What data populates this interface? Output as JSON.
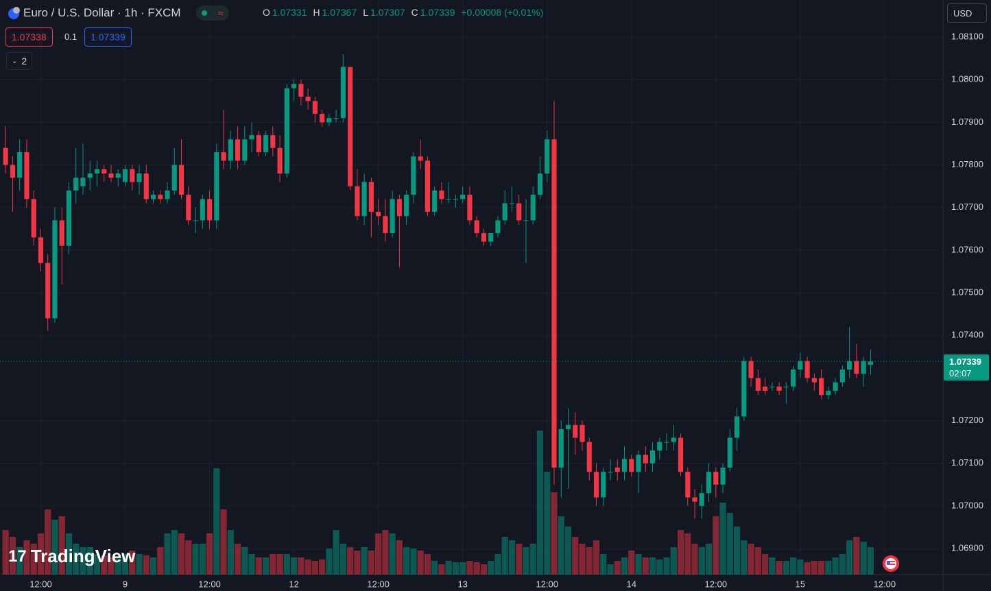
{
  "header": {
    "symbol": "Euro / U.S. Dollar · 1h · FXCM",
    "o_label": "O",
    "o": "1.07331",
    "h_label": "H",
    "h": "1.07367",
    "l_label": "L",
    "l": "1.07307",
    "c_label": "C",
    "c": "1.07339",
    "change": "+0.00008 (+0.01%)",
    "bid": "1.07338",
    "spread": "0.1",
    "ask": "1.07339",
    "indicators": "2",
    "currency": "USD",
    "logo": "TradingView"
  },
  "chart_data": {
    "type": "candlestick",
    "up_color": "#089981",
    "down_color": "#f23645",
    "grid": true,
    "x": [
      0,
      1,
      2,
      3,
      4,
      5,
      6,
      7,
      8,
      9,
      10,
      11,
      12,
      13,
      14,
      15,
      16,
      17,
      18,
      19,
      20,
      21,
      22,
      23,
      24,
      25,
      26,
      27,
      28,
      29,
      30,
      31,
      32,
      33,
      34,
      35,
      36,
      37,
      38,
      39,
      40,
      41,
      42,
      43,
      44,
      45,
      46,
      47,
      48,
      49,
      50,
      51,
      52,
      53,
      54,
      55,
      56,
      57,
      58,
      59,
      60,
      61,
      62,
      63,
      64,
      65,
      66,
      67,
      68,
      69,
      70,
      71,
      72,
      73,
      74,
      75,
      76,
      77,
      78,
      79,
      80,
      81,
      82,
      83,
      84,
      85,
      86,
      87,
      88,
      89,
      90,
      91,
      92,
      93,
      94,
      95,
      96,
      97,
      98,
      99,
      100,
      101,
      102,
      103,
      104,
      105,
      106,
      107,
      108,
      109,
      110,
      111,
      112,
      113,
      114,
      115,
      116,
      117,
      118,
      119,
      120,
      121,
      122,
      123
    ],
    "open": [
      1.0784,
      1.078,
      1.0777,
      1.0783,
      1.0772,
      1.0763,
      1.0757,
      1.0744,
      1.0767,
      1.0761,
      1.0774,
      1.0775,
      1.0777,
      1.0778,
      1.0779,
      1.0778,
      1.0777,
      1.0776,
      1.0779,
      1.0776,
      1.0778,
      1.0772,
      1.0773,
      1.0772,
      1.0774,
      1.078,
      1.0773,
      1.0767,
      1.0767,
      1.0772,
      1.0767,
      1.0783,
      1.0781,
      1.0786,
      1.0781,
      1.0786,
      1.0787,
      1.0783,
      1.0787,
      1.0784,
      1.0778,
      1.0798,
      1.0799,
      1.0796,
      1.0795,
      1.0792,
      1.079,
      1.0791,
      1.0791,
      1.0803,
      1.0775,
      1.0768,
      1.0776,
      1.0769,
      1.0768,
      1.0764,
      1.0772,
      1.0768,
      1.0773,
      1.0782,
      1.0781,
      1.0769,
      1.0774,
      1.0772,
      1.0772,
      1.0772,
      1.0773,
      1.0767,
      1.0764,
      1.0762,
      1.0764,
      1.0767,
      1.0771,
      1.0771,
      1.0767,
      1.0767,
      1.0773,
      1.0778,
      1.0786,
      1.0709,
      1.0718,
      1.0719,
      1.0719,
      1.0715,
      1.0708,
      1.0702,
      1.0708,
      1.0709,
      1.0708,
      1.0711,
      1.0708,
      1.0712,
      1.071,
      1.0713,
      1.0715,
      1.0715,
      1.0716,
      1.0708,
      1.0702,
      1.07,
      1.0703,
      1.0708,
      1.0705,
      1.0709,
      1.0716,
      1.0721,
      1.0734,
      1.073,
      1.0728,
      1.0728,
      1.0728,
      1.0728,
      1.0728,
      1.0732,
      1.0734,
      1.073,
      1.073,
      1.0726,
      1.0727,
      1.0729,
      1.0732,
      1.0734,
      1.0731,
      1.07331
    ],
    "high": [
      1.0789,
      1.0782,
      1.0786,
      1.0786,
      1.0774,
      1.0765,
      1.0759,
      1.077,
      1.077,
      1.0776,
      1.0784,
      1.0785,
      1.0781,
      1.0781,
      1.078,
      1.078,
      1.0779,
      1.078,
      1.078,
      1.078,
      1.078,
      1.0774,
      1.0774,
      1.0776,
      1.0784,
      1.0786,
      1.0775,
      1.077,
      1.0773,
      1.0774,
      1.0785,
      1.0793,
      1.0788,
      1.0789,
      1.0789,
      1.079,
      1.0788,
      1.0788,
      1.0789,
      1.0787,
      1.0799,
      1.08,
      1.08,
      1.0798,
      1.0796,
      1.0793,
      1.0792,
      1.0793,
      1.0806,
      1.0803,
      1.0779,
      1.0778,
      1.0777,
      1.0772,
      1.0772,
      1.0774,
      1.0773,
      1.0774,
      1.0783,
      1.0786,
      1.0782,
      1.0775,
      1.0776,
      1.0776,
      1.0773,
      1.0775,
      1.0775,
      1.0768,
      1.0765,
      1.0764,
      1.0768,
      1.0774,
      1.0775,
      1.0773,
      1.0772,
      1.0775,
      1.0782,
      1.0788,
      1.0795,
      1.072,
      1.0723,
      1.0722,
      1.072,
      1.0716,
      1.071,
      1.0709,
      1.0711,
      1.0711,
      1.0714,
      1.0712,
      1.0713,
      1.0714,
      1.0715,
      1.0716,
      1.0717,
      1.0719,
      1.0717,
      1.0709,
      1.0704,
      1.0705,
      1.071,
      1.0709,
      1.071,
      1.0718,
      1.0723,
      1.0735,
      1.0735,
      1.0732,
      1.073,
      1.0729,
      1.0729,
      1.0729,
      1.0733,
      1.0736,
      1.0735,
      1.0731,
      1.0732,
      1.0728,
      1.073,
      1.0733,
      1.0742,
      1.0738,
      1.0735,
      1.07367
    ],
    "low": [
      1.0778,
      1.0769,
      1.0774,
      1.077,
      1.0761,
      1.0755,
      1.0741,
      1.0743,
      1.0752,
      1.0759,
      1.0771,
      1.0773,
      1.0774,
      1.0775,
      1.0776,
      1.0776,
      1.0775,
      1.0775,
      1.0774,
      1.0773,
      1.0771,
      1.0771,
      1.0771,
      1.0771,
      1.0773,
      1.0772,
      1.0766,
      1.0764,
      1.0765,
      1.0765,
      1.0765,
      1.0779,
      1.0779,
      1.0779,
      1.078,
      1.0783,
      1.0782,
      1.0782,
      1.0782,
      1.0776,
      1.0777,
      1.0795,
      1.0794,
      1.0793,
      1.079,
      1.0789,
      1.0789,
      1.079,
      1.079,
      1.0774,
      1.0767,
      1.0766,
      1.0763,
      1.0766,
      1.0762,
      1.0763,
      1.0756,
      1.0766,
      1.0771,
      1.0779,
      1.0768,
      1.0768,
      1.0771,
      1.0771,
      1.077,
      1.0771,
      1.0766,
      1.0763,
      1.0761,
      1.0761,
      1.0763,
      1.0766,
      1.0769,
      1.0766,
      1.0757,
      1.0766,
      1.0772,
      1.0776,
      1.0705,
      1.0702,
      1.0704,
      1.0712,
      1.0713,
      1.0706,
      1.07,
      1.07,
      1.0706,
      1.0706,
      1.0706,
      1.0707,
      1.0703,
      1.0708,
      1.0708,
      1.0711,
      1.0713,
      1.0713,
      1.0707,
      1.07,
      1.0697,
      1.0697,
      1.0701,
      1.0702,
      1.0703,
      1.0708,
      1.0713,
      1.072,
      1.0728,
      1.0726,
      1.0726,
      1.0727,
      1.0726,
      1.0724,
      1.0727,
      1.073,
      1.0729,
      1.0727,
      1.0725,
      1.0725,
      1.0726,
      1.0728,
      1.073,
      1.073,
      1.0728,
      1.07307
    ],
    "close": [
      1.078,
      1.0777,
      1.0783,
      1.0772,
      1.0763,
      1.0757,
      1.0744,
      1.0767,
      1.0761,
      1.0774,
      1.0777,
      1.0777,
      1.0778,
      1.0779,
      1.0778,
      1.0777,
      1.0778,
      1.0779,
      1.0776,
      1.0778,
      1.0772,
      1.0773,
      1.0772,
      1.0774,
      1.078,
      1.0773,
      1.0767,
      1.0767,
      1.0772,
      1.0767,
      1.0783,
      1.0781,
      1.0786,
      1.0781,
      1.0786,
      1.0787,
      1.0783,
      1.0787,
      1.0784,
      1.0778,
      1.0798,
      1.0799,
      1.0796,
      1.0795,
      1.0792,
      1.079,
      1.0791,
      1.0791,
      1.0803,
      1.0775,
      1.0768,
      1.0776,
      1.0769,
      1.0768,
      1.0764,
      1.0772,
      1.0768,
      1.0773,
      1.0782,
      1.0781,
      1.0769,
      1.0774,
      1.0772,
      1.0772,
      1.0772,
      1.0773,
      1.0767,
      1.0764,
      1.0762,
      1.0764,
      1.0767,
      1.0771,
      1.0771,
      1.0767,
      1.0767,
      1.0773,
      1.0778,
      1.0786,
      1.0709,
      1.0718,
      1.0719,
      1.0716,
      1.0715,
      1.0708,
      1.0702,
      1.0708,
      1.0708,
      1.0708,
      1.0711,
      1.0708,
      1.0712,
      1.071,
      1.0713,
      1.0715,
      1.0715,
      1.0716,
      1.0708,
      1.0702,
      1.0701,
      1.0703,
      1.0708,
      1.0705,
      1.0709,
      1.0716,
      1.0721,
      1.0734,
      1.073,
      1.0727,
      1.0727,
      1.0728,
      1.0727,
      1.0728,
      1.0732,
      1.0734,
      1.073,
      1.0729,
      1.0726,
      1.0727,
      1.0729,
      1.0732,
      1.0734,
      1.0731,
      1.0734,
      1.07339
    ],
    "volume": [
      65,
      55,
      40,
      50,
      45,
      60,
      95,
      80,
      85,
      60,
      45,
      40,
      40,
      30,
      28,
      25,
      25,
      30,
      35,
      30,
      28,
      25,
      40,
      60,
      65,
      60,
      50,
      45,
      45,
      60,
      155,
      95,
      65,
      45,
      40,
      30,
      25,
      25,
      30,
      30,
      30,
      25,
      25,
      22,
      20,
      22,
      38,
      65,
      45,
      40,
      35,
      40,
      35,
      60,
      65,
      60,
      50,
      40,
      38,
      35,
      30,
      20,
      15,
      20,
      18,
      18,
      20,
      18,
      15,
      20,
      30,
      55,
      50,
      45,
      40,
      45,
      210,
      150,
      120,
      85,
      70,
      55,
      45,
      40,
      50,
      30,
      15,
      20,
      25,
      35,
      30,
      25,
      25,
      22,
      25,
      40,
      65,
      60,
      45,
      40,
      45,
      85,
      105,
      90,
      70,
      50,
      45,
      40,
      30,
      25,
      20,
      20,
      25,
      22,
      18,
      20,
      20,
      20,
      25,
      30,
      50,
      55,
      48,
      40
    ],
    "xlim": [
      -0.8,
      133.3
    ],
    "xticks": [
      {
        "value": 5,
        "label": "12:00"
      },
      {
        "value": 17,
        "label": "9"
      },
      {
        "value": 29,
        "label": "12:00"
      },
      {
        "value": 41,
        "label": "12"
      },
      {
        "value": 53,
        "label": "12:00"
      },
      {
        "value": 65,
        "label": "13"
      },
      {
        "value": 77,
        "label": "12:00"
      },
      {
        "value": 89,
        "label": "14"
      },
      {
        "value": 101,
        "label": "12:00"
      },
      {
        "value": 113,
        "label": "15"
      },
      {
        "value": 125,
        "label": "12:00"
      }
    ],
    "ylim": [
      1.06839,
      1.08187
    ],
    "yticks": [
      {
        "value": 1.081,
        "label": "1.08100"
      },
      {
        "value": 1.08,
        "label": "1.08000"
      },
      {
        "value": 1.079,
        "label": "1.07900"
      },
      {
        "value": 1.078,
        "label": "1.07800"
      },
      {
        "value": 1.077,
        "label": "1.07700"
      },
      {
        "value": 1.076,
        "label": "1.07600"
      },
      {
        "value": 1.075,
        "label": "1.07500"
      },
      {
        "value": 1.074,
        "label": "1.07400"
      },
      {
        "value": 1.072,
        "label": "1.07200"
      },
      {
        "value": 1.071,
        "label": "1.07100"
      },
      {
        "value": 1.07,
        "label": "1.07000"
      },
      {
        "value": 1.069,
        "label": "1.06900"
      }
    ],
    "last_price": {
      "value": 1.07339,
      "label": "1.07339"
    },
    "countdown": "02:07"
  }
}
